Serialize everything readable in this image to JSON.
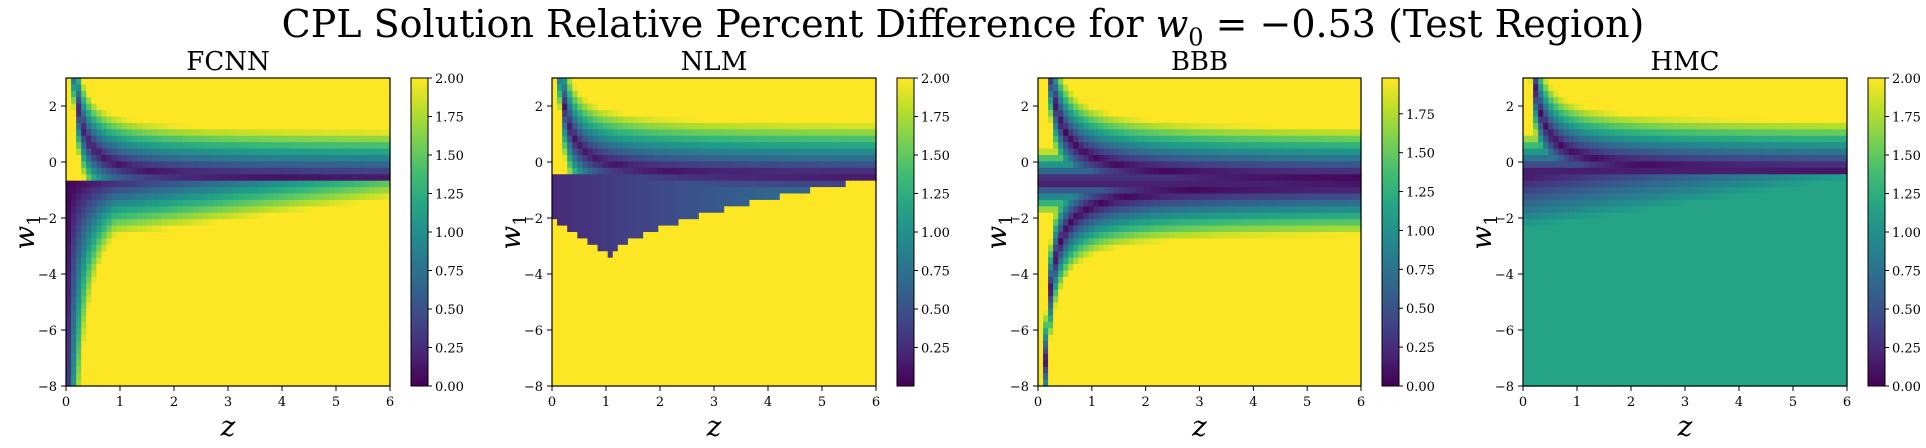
{
  "figure": {
    "title_prefix": "CPL Solution Relative Percent Difference for ",
    "title_math": "w",
    "title_sub": "0",
    "title_suffix": " = −0.53 (Test Region)"
  },
  "chart_data": [
    {
      "type": "heatmap",
      "title": "FCNN",
      "xlabel": "z",
      "ylabel": "w1",
      "xlim": [
        0,
        6
      ],
      "ylim": [
        -8,
        3
      ],
      "x_ticks": [
        "0",
        "1",
        "2",
        "3",
        "4",
        "5",
        "6"
      ],
      "y_ticks": [
        "−8",
        "−6",
        "−4",
        "−2",
        "0",
        "2"
      ],
      "colorbar": {
        "min": 0,
        "max": 2.0,
        "ticks": [
          "0.00",
          "0.25",
          "0.50",
          "0.75",
          "1.00",
          "1.25",
          "1.50",
          "1.75",
          "2.00"
        ]
      },
      "colormap": "viridis",
      "description_of_field": "yellow (≥2) upper right region above curve and lower region below curve from (2.6,-6) to (6,-1.5); dark minimum valley along hyperbola near y≈-0.7"
    },
    {
      "type": "heatmap",
      "title": "NLM",
      "xlabel": "z",
      "ylabel": "w1",
      "xlim": [
        0,
        6
      ],
      "ylim": [
        -8,
        3
      ],
      "x_ticks": [
        "0",
        "1",
        "2",
        "3",
        "4",
        "5",
        "6"
      ],
      "y_ticks": [
        "−8",
        "−6",
        "−4",
        "−2",
        "0",
        "2"
      ],
      "colorbar": {
        "min": 0,
        "max": 2.0,
        "ticks": [
          "0.25",
          "0.50",
          "0.75",
          "1.00",
          "1.25",
          "1.50",
          "1.75",
          "2.00"
        ]
      },
      "colormap": "viridis"
    },
    {
      "type": "heatmap",
      "title": "BBB",
      "xlabel": "z",
      "ylabel": "w1",
      "xlim": [
        0,
        6
      ],
      "ylim": [
        -8,
        3
      ],
      "x_ticks": [
        "0",
        "1",
        "2",
        "3",
        "4",
        "5",
        "6"
      ],
      "y_ticks": [
        "−8",
        "−6",
        "−4",
        "−2",
        "0",
        "2"
      ],
      "colorbar": {
        "min": 0,
        "max": 2.0,
        "ticks": [
          "0.00",
          "0.25",
          "0.50",
          "0.75",
          "1.00",
          "1.25",
          "1.50",
          "1.75"
        ]
      },
      "colormap": "viridis"
    },
    {
      "type": "heatmap",
      "title": "HMC",
      "xlabel": "z",
      "ylabel": "w1",
      "xlim": [
        0,
        6
      ],
      "ylim": [
        -8,
        3
      ],
      "x_ticks": [
        "0",
        "1",
        "2",
        "3",
        "4",
        "5",
        "6"
      ],
      "y_ticks": [
        "−8",
        "−6",
        "−4",
        "−2",
        "0",
        "2"
      ],
      "colorbar": {
        "min": 0,
        "max": 2.0,
        "ticks": [
          "0.00",
          "0.25",
          "0.50",
          "0.75",
          "1.00",
          "1.25",
          "1.50",
          "1.75",
          "2.00"
        ]
      },
      "colormap": "viridis"
    }
  ]
}
